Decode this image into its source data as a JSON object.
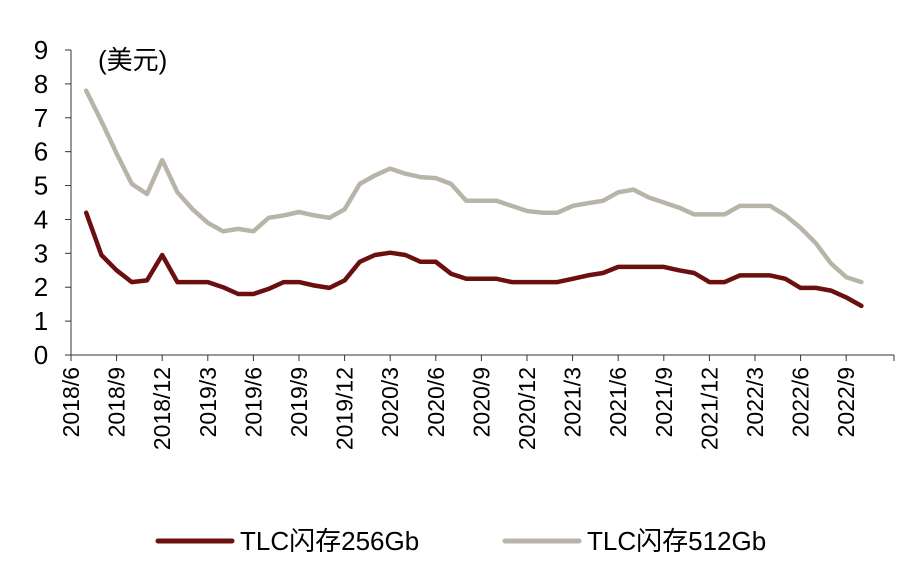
{
  "chart_data": {
    "type": "line",
    "title": "",
    "unit_label": "(美元)",
    "xlabel": "",
    "ylabel": "",
    "ylim": [
      0,
      9
    ],
    "y_ticks": [
      "0",
      "1",
      "2",
      "3",
      "4",
      "5",
      "6",
      "7",
      "8",
      "9"
    ],
    "x_tick_labels": [
      "2018/6",
      "2018/9",
      "2018/12",
      "2019/3",
      "2019/6",
      "2019/9",
      "2019/12",
      "2020/3",
      "2020/6",
      "2020/9",
      "2020/12",
      "2021/3",
      "2021/6",
      "2021/9",
      "2021/12",
      "2022/3",
      "2022/6",
      "2022/9"
    ],
    "x_start": "2018/6",
    "grid": false,
    "legend_position": "bottom",
    "series": [
      {
        "name": "TLC闪存256Gb",
        "color": "#6b0f0f",
        "start_month_index": 1,
        "values": [
          4.2,
          2.95,
          2.5,
          2.15,
          2.2,
          2.95,
          2.15,
          2.15,
          2.15,
          2.0,
          1.8,
          1.8,
          1.95,
          2.15,
          2.15,
          2.05,
          1.98,
          2.2,
          2.75,
          2.95,
          3.02,
          2.95,
          2.75,
          2.75,
          2.4,
          2.25,
          2.25,
          2.25,
          2.15,
          2.15,
          2.15,
          2.15,
          2.25,
          2.35,
          2.42,
          2.6,
          2.6,
          2.6,
          2.6,
          2.5,
          2.42,
          2.15,
          2.15,
          2.35,
          2.35,
          2.35,
          2.25,
          1.98,
          1.98,
          1.9,
          1.7,
          1.45
        ]
      },
      {
        "name": "TLC闪存512Gb",
        "color": "#b8b5a8",
        "start_month_index": 1,
        "values": [
          7.8,
          6.9,
          5.95,
          5.05,
          4.75,
          5.75,
          4.8,
          4.3,
          3.9,
          3.65,
          3.72,
          3.65,
          4.05,
          4.12,
          4.22,
          4.12,
          4.05,
          4.3,
          5.05,
          5.3,
          5.5,
          5.35,
          5.25,
          5.22,
          5.05,
          4.55,
          4.55,
          4.55,
          4.4,
          4.25,
          4.2,
          4.2,
          4.4,
          4.48,
          4.55,
          4.8,
          4.88,
          4.65,
          4.5,
          4.35,
          4.15,
          4.15,
          4.15,
          4.4,
          4.4,
          4.4,
          4.12,
          3.75,
          3.3,
          2.7,
          2.3,
          2.15
        ]
      }
    ]
  }
}
